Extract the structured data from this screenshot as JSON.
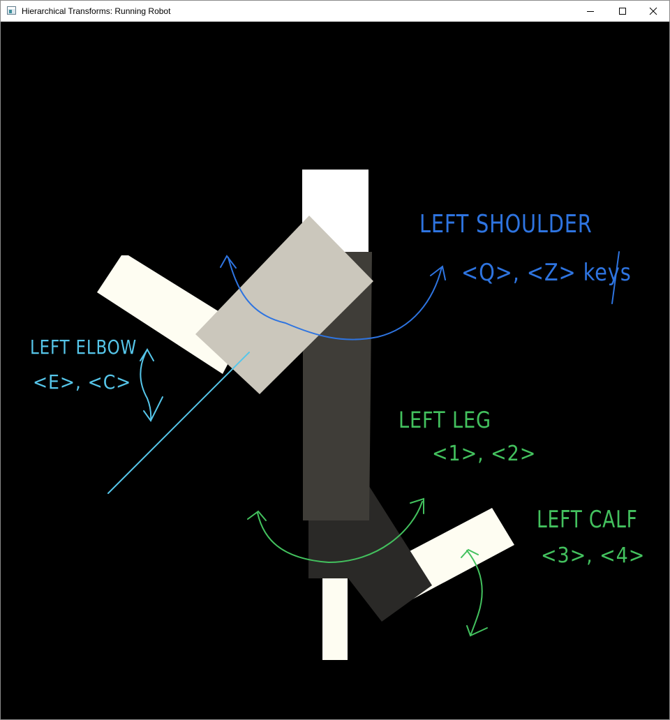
{
  "window": {
    "title": "Hierarchical Transforms: Running Robot",
    "controls": {
      "minimize": "minimize-icon",
      "maximize": "maximize-icon",
      "close": "close-icon"
    }
  },
  "annotations": {
    "left_shoulder": {
      "label": "LEFT SHOULDER",
      "keys": "<Q>, <Z> keys",
      "color": "#2e74e0"
    },
    "left_elbow": {
      "label": "LEFT ELBOW",
      "keys": "<E>, <C>",
      "color": "#56c6ea"
    },
    "left_leg": {
      "label": "LEFT LEG",
      "keys": "<1>, <2>",
      "color": "#43c15e"
    },
    "left_calf": {
      "label": "LEFT CALF",
      "keys": "<3>, <4>",
      "color": "#43c15e"
    }
  },
  "colors": {
    "background": "#000000",
    "head": "#ffffff",
    "torso": "#3f3d38",
    "upper_arm": "#cbc7bc",
    "forearm": "#fefdf2",
    "thigh": "#2a2927",
    "calf": "#fefdf2"
  }
}
